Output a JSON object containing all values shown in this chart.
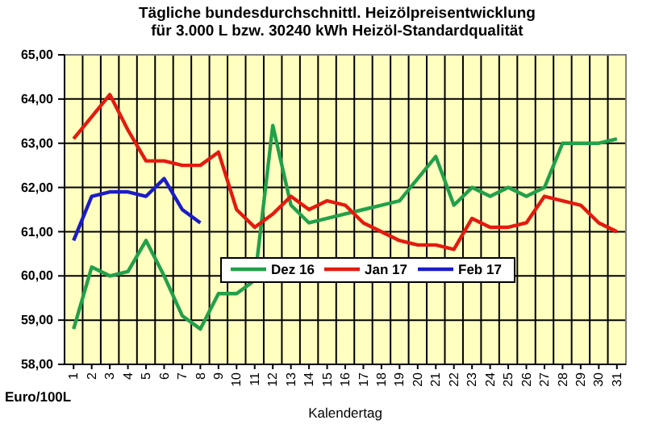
{
  "chart_data": {
    "type": "line",
    "title": "Tägliche bundesdurchschnittl. Heizölpreisentwicklung",
    "subtitle": "für 3.000 L bzw. 30240 kWh Heizöl-Standardqualität",
    "xlabel": "Kalendertag",
    "ylabel": "Euro/100L",
    "categories": [
      "1",
      "2",
      "3",
      "4",
      "5",
      "6",
      "7",
      "8",
      "9",
      "10",
      "11",
      "12",
      "13",
      "14",
      "15",
      "16",
      "17",
      "18",
      "19",
      "20",
      "21",
      "22",
      "23",
      "24",
      "25",
      "26",
      "27",
      "28",
      "29",
      "30",
      "31"
    ],
    "series": [
      {
        "name": "Dez 16",
        "color": "#22a04a",
        "values": [
          58.8,
          60.2,
          60.0,
          60.1,
          60.8,
          60.0,
          59.1,
          58.8,
          59.6,
          59.6,
          59.9,
          63.4,
          61.6,
          61.2,
          61.3,
          61.4,
          61.5,
          61.6,
          61.7,
          62.2,
          62.7,
          61.6,
          62.0,
          61.8,
          62.0,
          61.8,
          62.0,
          63.0,
          63.0,
          63.0,
          63.1
        ]
      },
      {
        "name": "Jan 17",
        "color": "#e41a0e",
        "values": [
          63.1,
          63.6,
          64.1,
          63.3,
          62.6,
          62.6,
          62.5,
          62.5,
          62.8,
          61.5,
          61.1,
          61.4,
          61.8,
          61.5,
          61.7,
          61.6,
          61.2,
          61.0,
          60.8,
          60.7,
          60.7,
          60.6,
          61.3,
          61.1,
          61.1,
          61.2,
          61.8,
          61.7,
          61.6,
          61.2,
          61.0
        ]
      },
      {
        "name": "Feb 17",
        "color": "#1c1cc8",
        "values": [
          60.8,
          61.8,
          61.9,
          61.9,
          61.8,
          62.2,
          61.5,
          61.2,
          null,
          null,
          null,
          null,
          null,
          null,
          null,
          null,
          null,
          null,
          null,
          null,
          null,
          null,
          null,
          null,
          null,
          null,
          null,
          null,
          null,
          null,
          null
        ]
      }
    ],
    "ylim": [
      58,
      65
    ],
    "yticks": [
      {
        "value": 58,
        "label": "58,00"
      },
      {
        "value": 59,
        "label": "59,00"
      },
      {
        "value": 60,
        "label": "60,00"
      },
      {
        "value": 61,
        "label": "61,00"
      },
      {
        "value": 62,
        "label": "62,00"
      },
      {
        "value": 63,
        "label": "63,00"
      },
      {
        "value": 64,
        "label": "64,00"
      },
      {
        "value": 65,
        "label": "65,00"
      }
    ],
    "grid": true,
    "legend": "bottom",
    "marker": "none",
    "line_style": "solid"
  }
}
